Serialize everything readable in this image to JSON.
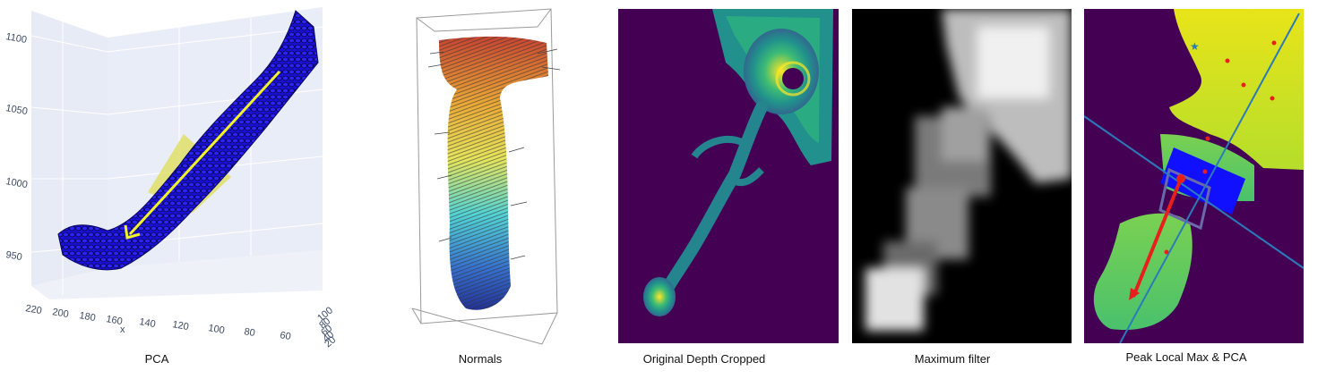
{
  "figure": {
    "captions": {
      "pca": "PCA",
      "normals": "Normals",
      "depth": "Original Depth Cropped",
      "maxfilter": "Maximum filter",
      "peak": "Peak Local Max & PCA"
    },
    "pca_plot": {
      "z_ticks": [
        "1100",
        "1050",
        "1000",
        "950"
      ],
      "x_ticks": [
        "220",
        "200",
        "180",
        "160",
        "140",
        "120",
        "100",
        "80",
        "60"
      ],
      "x_axis_letter": "x",
      "y_ticks": [
        "100",
        "80",
        "60",
        "40",
        "20"
      ]
    },
    "colors": {
      "points": "#1a0fd6",
      "arrow": "#f2f22a",
      "plane": "#dede55",
      "viridis_bg": "#440154",
      "viridis_mid": "#21918c",
      "viridis_high": "#fde725",
      "pca_line": "#2b7bba",
      "peak_marker": "#e8201d",
      "oriented_box": "#1010ff"
    }
  }
}
